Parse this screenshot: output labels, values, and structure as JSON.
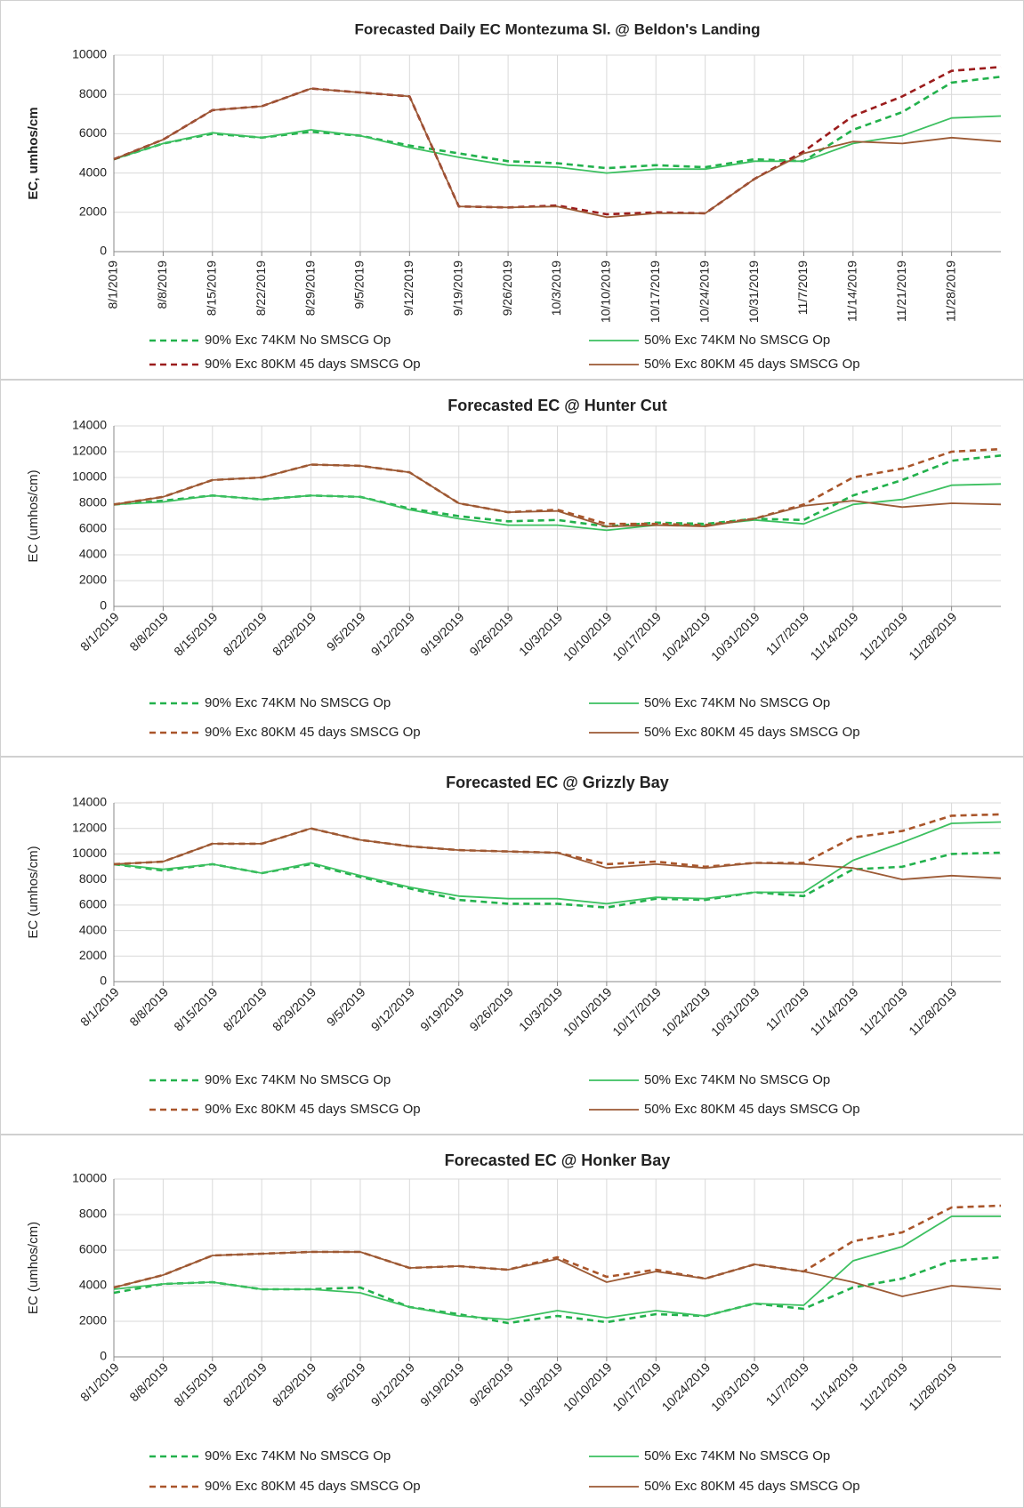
{
  "chart_data": [
    {
      "type": "line",
      "title": "Forecasted Daily EC Montezuma Sl. @ Beldon's Landing",
      "ylabel": "EC, umhos/cm",
      "categories": [
        "8/1/2019",
        "8/8/2019",
        "8/15/2019",
        "8/22/2019",
        "8/29/2019",
        "9/5/2019",
        "9/12/2019",
        "9/19/2019",
        "9/26/2019",
        "10/3/2019",
        "10/10/2019",
        "10/17/2019",
        "10/24/2019",
        "10/31/2019",
        "11/7/2019",
        "11/14/2019",
        "11/21/2019",
        "11/28/2019",
        null
      ],
      "ylim": [
        0,
        10000
      ],
      "yticks": [
        0,
        2000,
        4000,
        6000,
        8000,
        10000
      ],
      "grid": true,
      "series": [
        {
          "name": "90% Exc 74KM No SMSCG Op",
          "color": "#22b14c",
          "dash": true,
          "values": [
            4700,
            5500,
            6000,
            5800,
            6100,
            5900,
            5400,
            5000,
            4600,
            4500,
            4250,
            4400,
            4300,
            4700,
            4600,
            6200,
            7100,
            8600,
            8900
          ]
        },
        {
          "name": "50% Exc 74KM No SMSCG Op",
          "color": "#3cc060",
          "dash": false,
          "values": [
            4700,
            5500,
            6050,
            5800,
            6200,
            5900,
            5300,
            4800,
            4400,
            4300,
            4000,
            4200,
            4200,
            4600,
            4600,
            5500,
            5900,
            6800,
            6900
          ]
        },
        {
          "name": "90% Exc 80KM 45 days SMSCG Op",
          "color": "#9b1c1c",
          "dash": true,
          "values": [
            4700,
            5700,
            7200,
            7400,
            8300,
            8100,
            7900,
            2300,
            2250,
            2350,
            1900,
            2000,
            1950,
            3700,
            5100,
            6900,
            7900,
            9200,
            9400
          ]
        },
        {
          "name": "50% Exc 80KM 45 days SMSCG Op",
          "color": "#9c5a35",
          "dash": false,
          "values": [
            4700,
            5700,
            7200,
            7400,
            8300,
            8100,
            7900,
            2300,
            2250,
            2300,
            1750,
            1950,
            1950,
            3700,
            5000,
            5600,
            5500,
            5800,
            5600
          ]
        }
      ]
    },
    {
      "type": "line",
      "title": "Forecasted EC @ Hunter Cut",
      "ylabel": "EC (umhos/cm)",
      "categories": [
        "8/1/2019",
        "8/8/2019",
        "8/15/2019",
        "8/22/2019",
        "8/29/2019",
        "9/5/2019",
        "9/12/2019",
        "9/19/2019",
        "9/26/2019",
        "10/3/2019",
        "10/10/2019",
        "10/17/2019",
        "10/24/2019",
        "10/31/2019",
        "11/7/2019",
        "11/14/2019",
        "11/21/2019",
        "11/28/2019",
        null
      ],
      "ylim": [
        0,
        14000
      ],
      "yticks": [
        0,
        2000,
        4000,
        6000,
        8000,
        10000,
        12000,
        14000
      ],
      "grid": true,
      "series": [
        {
          "name": "90% Exc 74KM No SMSCG Op",
          "color": "#22b14c",
          "dash": true,
          "values": [
            7900,
            8200,
            8600,
            8300,
            8600,
            8500,
            7600,
            7000,
            6600,
            6700,
            6200,
            6500,
            6400,
            6800,
            6700,
            8600,
            9800,
            11300,
            11700
          ]
        },
        {
          "name": "50% Exc 74KM No SMSCG Op",
          "color": "#3cc060",
          "dash": false,
          "values": [
            7900,
            8100,
            8600,
            8300,
            8600,
            8500,
            7500,
            6800,
            6300,
            6300,
            5900,
            6300,
            6300,
            6700,
            6400,
            7900,
            8300,
            9400,
            9500
          ]
        },
        {
          "name": "90% Exc 80KM 45 days SMSCG Op",
          "color": "#a9552a",
          "dash": true,
          "values": [
            7900,
            8500,
            9800,
            10000,
            11000,
            10900,
            10400,
            8000,
            7300,
            7500,
            6400,
            6400,
            6300,
            6800,
            7900,
            10000,
            10700,
            12000,
            12200
          ]
        },
        {
          "name": "50% Exc 80KM 45 days SMSCG Op",
          "color": "#9c5a35",
          "dash": false,
          "values": [
            7900,
            8500,
            9800,
            10000,
            11000,
            10900,
            10400,
            8000,
            7300,
            7400,
            6200,
            6300,
            6200,
            6800,
            7800,
            8200,
            7700,
            8000,
            7900
          ]
        }
      ]
    },
    {
      "type": "line",
      "title": "Forecasted EC @ Grizzly Bay",
      "ylabel": "EC (umhos/cm)",
      "categories": [
        "8/1/2019",
        "8/8/2019",
        "8/15/2019",
        "8/22/2019",
        "8/29/2019",
        "9/5/2019",
        "9/12/2019",
        "9/19/2019",
        "9/26/2019",
        "10/3/2019",
        "10/10/2019",
        "10/17/2019",
        "10/24/2019",
        "10/31/2019",
        "11/7/2019",
        "11/14/2019",
        "11/21/2019",
        "11/28/2019",
        null
      ],
      "ylim": [
        0,
        14000
      ],
      "yticks": [
        0,
        2000,
        4000,
        6000,
        8000,
        10000,
        12000,
        14000
      ],
      "grid": true,
      "series": [
        {
          "name": "90% Exc 74KM No SMSCG Op",
          "color": "#22b14c",
          "dash": true,
          "values": [
            9200,
            8700,
            9200,
            8500,
            9200,
            8200,
            7300,
            6400,
            6100,
            6100,
            5800,
            6500,
            6400,
            7000,
            6700,
            8800,
            9000,
            10000,
            10100
          ]
        },
        {
          "name": "50% Exc 74KM No SMSCG Op",
          "color": "#3cc060",
          "dash": false,
          "values": [
            9200,
            8800,
            9200,
            8500,
            9300,
            8300,
            7400,
            6700,
            6500,
            6500,
            6100,
            6600,
            6500,
            7000,
            7000,
            9500,
            10900,
            12400,
            12500
          ]
        },
        {
          "name": "90% Exc 80KM 45 days SMSCG Op",
          "color": "#a9552a",
          "dash": true,
          "values": [
            9200,
            9400,
            10800,
            10800,
            12000,
            11100,
            10600,
            10300,
            10200,
            10100,
            9200,
            9400,
            9000,
            9300,
            9300,
            11300,
            11800,
            13000,
            13100
          ]
        },
        {
          "name": "50% Exc 80KM 45 days SMSCG Op",
          "color": "#9c5a35",
          "dash": false,
          "values": [
            9200,
            9400,
            10800,
            10800,
            12000,
            11100,
            10600,
            10300,
            10200,
            10100,
            8900,
            9200,
            8900,
            9300,
            9200,
            8900,
            8000,
            8300,
            8100
          ]
        }
      ]
    },
    {
      "type": "line",
      "title": "Forecasted EC @ Honker Bay",
      "ylabel": "EC (umhos/cm)",
      "categories": [
        "8/1/2019",
        "8/8/2019",
        "8/15/2019",
        "8/22/2019",
        "8/29/2019",
        "9/5/2019",
        "9/12/2019",
        "9/19/2019",
        "9/26/2019",
        "10/3/2019",
        "10/10/2019",
        "10/17/2019",
        "10/24/2019",
        "10/31/2019",
        "11/7/2019",
        "11/14/2019",
        "11/21/2019",
        "11/28/2019",
        null
      ],
      "ylim": [
        0,
        10000
      ],
      "yticks": [
        0,
        2000,
        4000,
        6000,
        8000,
        10000
      ],
      "grid": true,
      "series": [
        {
          "name": "90% Exc 74KM No SMSCG Op",
          "color": "#22b14c",
          "dash": true,
          "values": [
            3600,
            4100,
            4200,
            3800,
            3800,
            3900,
            2800,
            2400,
            1900,
            2300,
            1950,
            2400,
            2300,
            3000,
            2700,
            3900,
            4400,
            5400,
            5600
          ]
        },
        {
          "name": "50% Exc 74KM No SMSCG Op",
          "color": "#3cc060",
          "dash": false,
          "values": [
            3800,
            4100,
            4200,
            3800,
            3800,
            3600,
            2800,
            2300,
            2100,
            2600,
            2200,
            2600,
            2300,
            3000,
            2900,
            5400,
            6200,
            7900,
            7900
          ]
        },
        {
          "name": "90% Exc 80KM 45 days SMSCG Op",
          "color": "#a9552a",
          "dash": true,
          "values": [
            3900,
            4600,
            5700,
            5800,
            5900,
            5900,
            5000,
            5100,
            4900,
            5600,
            4500,
            4900,
            4400,
            5200,
            4800,
            6500,
            7000,
            8400,
            8500
          ]
        },
        {
          "name": "50% Exc 80KM 45 days SMSCG Op",
          "color": "#9c5a35",
          "dash": false,
          "values": [
            3900,
            4600,
            5700,
            5800,
            5900,
            5900,
            5000,
            5100,
            4900,
            5500,
            4200,
            4800,
            4400,
            5200,
            4800,
            4200,
            3400,
            4000,
            3800
          ]
        }
      ]
    }
  ]
}
